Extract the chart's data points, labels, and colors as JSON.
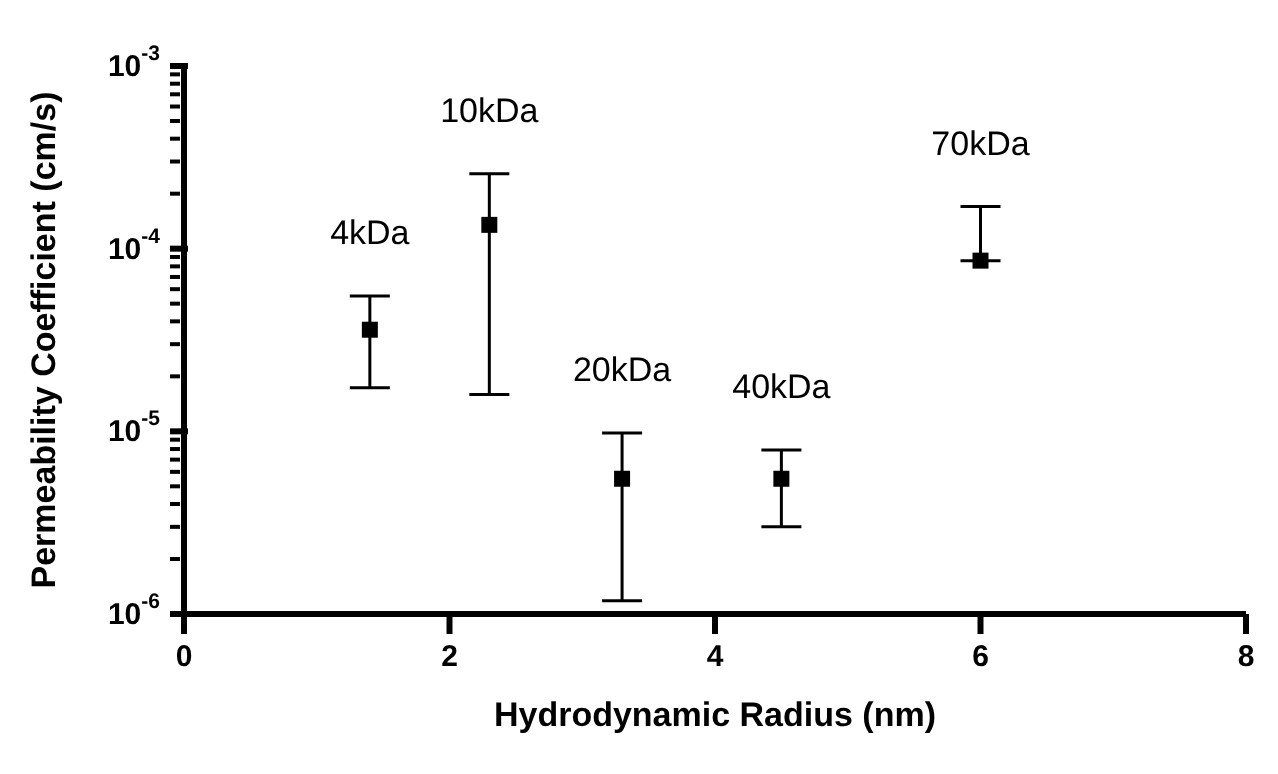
{
  "chart_data": {
    "type": "scatter",
    "xlabel": "Hydrodynamic Radius (nm)",
    "ylabel": "Permeability Coefficient (cm/s)",
    "log": "y",
    "marker": "square",
    "grid": false,
    "legend": false,
    "x": [
      1.4,
      2.3,
      3.3,
      4.5,
      6.0
    ],
    "series": [
      {
        "color": "#000000",
        "values": [
          3.6e-05,
          0.000135,
          5.5e-06,
          5.5e-06,
          8.6e-05
        ],
        "errors": [
          [
            1.73e-05,
            5.5e-05
          ],
          [
            1.59e-05,
            0.000257
          ],
          [
            1.18e-06,
            9.8e-06
          ],
          [
            3e-06,
            7.9e-06
          ],
          [
            8.6e-05,
            0.00017
          ]
        ]
      }
    ],
    "xlim": [
      0,
      8
    ],
    "xticks": [
      0,
      2,
      4,
      6,
      8
    ],
    "ylim": [
      1e-06,
      0.001
    ],
    "yticks": [
      {
        "value": 1e-06,
        "label": "10$^{-6}$"
      },
      {
        "value": 2e-06,
        "label": null
      },
      {
        "value": 3e-06,
        "label": null
      },
      {
        "value": 4e-06,
        "label": null
      },
      {
        "value": 5e-06,
        "label": null
      },
      {
        "value": 6e-06,
        "label": null
      },
      {
        "value": 7e-06,
        "label": null
      },
      {
        "value": 8e-06,
        "label": null
      },
      {
        "value": 9e-06,
        "label": null
      },
      {
        "value": 1e-05,
        "label": "10$^{-5}$"
      },
      {
        "value": 2e-05,
        "label": null
      },
      {
        "value": 3e-05,
        "label": null
      },
      {
        "value": 4e-05,
        "label": null
      },
      {
        "value": 5e-05,
        "label": null
      },
      {
        "value": 6e-05,
        "label": null
      },
      {
        "value": 7e-05,
        "label": null
      },
      {
        "value": 8e-05,
        "label": null
      },
      {
        "value": 9e-05,
        "label": null
      },
      {
        "value": 0.0001,
        "label": "10$^{-4}$"
      },
      {
        "value": 0.0002,
        "label": null
      },
      {
        "value": 0.0003,
        "label": null
      },
      {
        "value": 0.0004,
        "label": null
      },
      {
        "value": 0.0005,
        "label": null
      },
      {
        "value": 0.0006,
        "label": null
      },
      {
        "value": 0.0007,
        "label": null
      },
      {
        "value": 0.0008,
        "label": null
      },
      {
        "value": 0.0009,
        "label": null
      },
      {
        "value": 0.001,
        "label": "10$^{-3}$"
      }
    ],
    "annotations": [
      {
        "text": "4kDa",
        "x": 1.4,
        "y": 3.6e-05
      },
      {
        "text": "10kDa",
        "x": 2.3,
        "y": 0.000135
      },
      {
        "text": "20kDa",
        "x": 3.3,
        "y": 5.5e-06
      },
      {
        "text": "40kDa",
        "x": 4.5,
        "y": 5.5e-06
      },
      {
        "text": "70kDa",
        "x": 6.0,
        "y": 8.6e-05
      }
    ]
  }
}
